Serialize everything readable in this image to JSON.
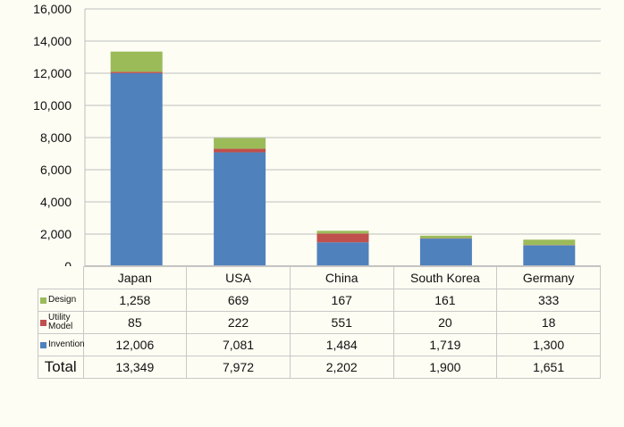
{
  "colors": {
    "design": "#9bbb59",
    "utility": "#c0504d",
    "invention": "#4f81bd",
    "grid": "#bfbfbf"
  },
  "chart_data": {
    "type": "bar",
    "stacked": true,
    "categories": [
      "Japan",
      "USA",
      "China",
      "South Korea",
      "Germany"
    ],
    "series": [
      {
        "name": "Invention",
        "values": [
          12006,
          7081,
          1484,
          1719,
          1300
        ]
      },
      {
        "name": "Utility Model",
        "values": [
          85,
          222,
          551,
          20,
          18
        ]
      },
      {
        "name": "Design",
        "values": [
          1258,
          669,
          167,
          161,
          333
        ]
      }
    ],
    "totals_label": "Total",
    "totals": [
      13349,
      7972,
      2202,
      1900,
      1651
    ],
    "ylim": [
      0,
      16000
    ],
    "yticks": [
      0,
      2000,
      4000,
      6000,
      8000,
      10000,
      12000,
      14000,
      16000
    ],
    "ytick_labels": [
      "0",
      "2,000",
      "4,000",
      "6,000",
      "8,000",
      "10,000",
      "12,000",
      "14,000",
      "16,000"
    ],
    "grid": true,
    "legend": "data-table"
  },
  "table": {
    "design_label": "Design",
    "utility_label_1": "Utility",
    "utility_label_2": "Model",
    "invention_label": "Invention",
    "total_label": "Total",
    "rows": {
      "design": [
        "1,258",
        "669",
        "167",
        "161",
        "333"
      ],
      "utility": [
        "85",
        "222",
        "551",
        "20",
        "18"
      ],
      "invention": [
        "12,006",
        "7,081",
        "1,484",
        "1,719",
        "1,300"
      ],
      "total": [
        "13,349",
        "7,972",
        "2,202",
        "1,900",
        "1,651"
      ]
    }
  }
}
